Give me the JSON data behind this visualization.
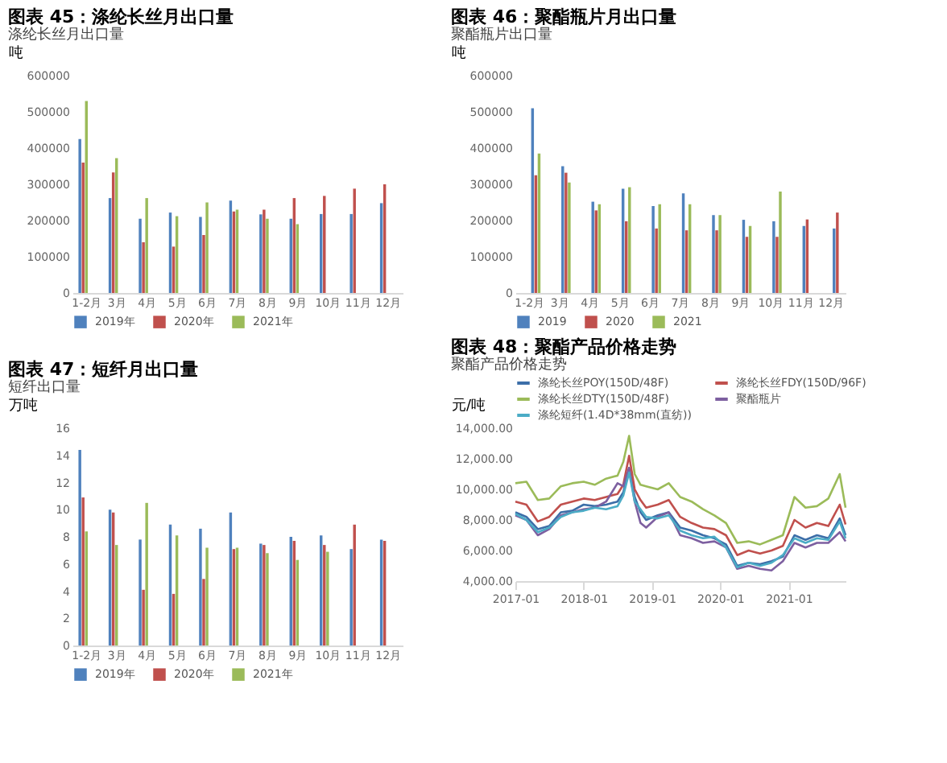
{
  "chart_data": [
    {
      "type": "bar",
      "title": "图表 45：涤纶长丝月出口量",
      "subtitle": "涤纶长丝月出口量",
      "ylabel": "吨",
      "categories": [
        "1-2月",
        "3月",
        "4月",
        "5月",
        "6月",
        "7月",
        "8月",
        "9月",
        "10月",
        "11月",
        "12月"
      ],
      "series": [
        {
          "name": "2019年",
          "color": "#4f81bd",
          "values": [
            425000,
            262000,
            205000,
            222000,
            210000,
            255000,
            217000,
            205000,
            218000,
            218000,
            248000
          ]
        },
        {
          "name": "2020年",
          "color": "#c0504d",
          "values": [
            360000,
            333000,
            140000,
            128000,
            160000,
            225000,
            230000,
            262000,
            268000,
            288000,
            300000
          ]
        },
        {
          "name": "2021年",
          "color": "#9bbb59",
          "values": [
            530000,
            372000,
            262000,
            212000,
            250000,
            230000,
            205000,
            190000,
            null,
            null,
            null
          ]
        }
      ],
      "ylim": [
        0,
        600000
      ],
      "yticks": [
        0,
        100000,
        200000,
        300000,
        400000,
        500000,
        600000
      ],
      "grid": false,
      "legend": "bottom"
    },
    {
      "type": "bar",
      "title": "图表 46：聚酯瓶片月出口量",
      "subtitle": "聚酯瓶片出口量",
      "ylabel": "吨",
      "categories": [
        "1-2月",
        "3月",
        "4月",
        "5月",
        "6月",
        "7月",
        "8月",
        "9月",
        "10月",
        "11月",
        "12月"
      ],
      "series": [
        {
          "name": "2019",
          "color": "#4f81bd",
          "values": [
            510000,
            350000,
            252000,
            288000,
            240000,
            275000,
            215000,
            202000,
            198000,
            185000,
            178000
          ]
        },
        {
          "name": "2020",
          "color": "#c0504d",
          "values": [
            325000,
            332000,
            228000,
            198000,
            178000,
            173000,
            173000,
            155000,
            155000,
            203000,
            222000
          ]
        },
        {
          "name": "2021",
          "color": "#9bbb59",
          "values": [
            385000,
            305000,
            245000,
            292000,
            245000,
            245000,
            215000,
            185000,
            280000,
            null,
            null
          ]
        }
      ],
      "ylim": [
        0,
        600000
      ],
      "yticks": [
        0,
        100000,
        200000,
        300000,
        400000,
        500000,
        600000
      ],
      "grid": false,
      "legend": "bottom"
    },
    {
      "type": "bar",
      "title": "图表 47：短纤月出口量",
      "subtitle": "短纤出口量",
      "ylabel": "万吨",
      "categories": [
        "1-2月",
        "3月",
        "4月",
        "5月",
        "6月",
        "7月",
        "8月",
        "9月",
        "10月",
        "11月",
        "12月"
      ],
      "series": [
        {
          "name": "2019年",
          "color": "#4f81bd",
          "values": [
            14.4,
            10.0,
            7.8,
            8.9,
            8.6,
            9.8,
            7.5,
            8.0,
            8.1,
            7.1,
            7.8
          ]
        },
        {
          "name": "2020年",
          "color": "#c0504d",
          "values": [
            10.9,
            9.8,
            4.1,
            3.8,
            4.9,
            7.1,
            7.4,
            7.7,
            7.4,
            8.9,
            7.7
          ]
        },
        {
          "name": "2021年",
          "color": "#9bbb59",
          "values": [
            8.4,
            7.4,
            10.5,
            8.1,
            7.2,
            7.2,
            6.8,
            6.3,
            6.9,
            null,
            null
          ]
        }
      ],
      "ylim": [
        0,
        16
      ],
      "yticks": [
        0,
        2,
        4,
        6,
        8,
        10,
        12,
        14,
        16
      ],
      "grid": false,
      "legend": "bottom"
    },
    {
      "type": "line",
      "title": "图表 48：聚酯产品价格走势",
      "subtitle": "聚酯产品价格走势",
      "ylabel": "元/吨",
      "x": [
        "2017-01",
        "2017-03",
        "2017-05",
        "2017-07",
        "2017-09",
        "2017-11",
        "2018-01",
        "2018-03",
        "2018-05",
        "2018-07",
        "2018-08",
        "2018-09",
        "2018-10",
        "2018-11",
        "2018-12",
        "2019-02",
        "2019-04",
        "2019-06",
        "2019-08",
        "2019-10",
        "2019-12",
        "2020-02",
        "2020-04",
        "2020-06",
        "2020-08",
        "2020-10",
        "2020-12",
        "2021-02",
        "2021-04",
        "2021-06",
        "2021-08",
        "2021-10",
        "2021-11"
      ],
      "series": [
        {
          "name": "涤纶长丝POY(150D/48F)",
          "color": "#3c6ea8",
          "values": [
            8500,
            8200,
            7400,
            7600,
            8500,
            8600,
            9000,
            8900,
            9000,
            9200,
            9800,
            11400,
            9500,
            8500,
            8000,
            8300,
            8500,
            7500,
            7300,
            7000,
            6800,
            6400,
            5000,
            5200,
            5100,
            5300,
            5600,
            7000,
            6700,
            7000,
            6800,
            8100,
            7000
          ]
        },
        {
          "name": "涤纶长丝FDY(150D/96F)",
          "color": "#c0504d",
          "values": [
            9200,
            9000,
            7900,
            8200,
            9000,
            9200,
            9400,
            9300,
            9500,
            9700,
            10300,
            12200,
            10000,
            9300,
            8800,
            9000,
            9300,
            8200,
            7800,
            7500,
            7400,
            7000,
            5700,
            6000,
            5800,
            6000,
            6300,
            8000,
            7500,
            7800,
            7600,
            9000,
            7700
          ]
        },
        {
          "name": "涤纶长丝DTY(150D/48F)",
          "color": "#9bbb59",
          "values": [
            10400,
            10500,
            9300,
            9400,
            10200,
            10400,
            10500,
            10300,
            10700,
            10900,
            11800,
            13500,
            11000,
            10300,
            10200,
            10000,
            10400,
            9500,
            9200,
            8700,
            8300,
            7800,
            6500,
            6600,
            6400,
            6700,
            7000,
            9500,
            8800,
            8900,
            9400,
            11000,
            8800
          ]
        },
        {
          "name": "聚酯瓶片",
          "color": "#7d5fa0",
          "values": [
            8300,
            8000,
            7000,
            7400,
            8300,
            8500,
            8700,
            8800,
            9200,
            10400,
            10200,
            11400,
            9200,
            7800,
            7500,
            8200,
            8500,
            7000,
            6800,
            6500,
            6600,
            6200,
            4800,
            5000,
            4800,
            4700,
            5300,
            6500,
            6200,
            6500,
            6500,
            7200,
            6600
          ]
        },
        {
          "name": "涤纶短纤(1.4D*38mm(直纺))",
          "color": "#4bacc6",
          "values": [
            8400,
            8000,
            7200,
            7500,
            8200,
            8500,
            8600,
            8800,
            8700,
            8900,
            9600,
            11100,
            9200,
            8700,
            8200,
            8100,
            8300,
            7300,
            7000,
            6800,
            6900,
            6200,
            4900,
            5200,
            5000,
            5200,
            5700,
            6800,
            6500,
            6800,
            6700,
            7900,
            6800
          ]
        }
      ],
      "xlim": [
        "2017-01",
        "2021-11"
      ],
      "xticks": [
        "2017-01",
        "2018-01",
        "2019-01",
        "2020-01",
        "2021-01"
      ],
      "ylim": [
        4000,
        14000
      ],
      "yticks": [
        {
          "value": 4000,
          "label": "4,000.00"
        },
        {
          "value": 6000,
          "label": "6,000.00"
        },
        {
          "value": 8000,
          "label": "8,000.00"
        },
        {
          "value": 10000,
          "label": "10,000.00"
        },
        {
          "value": 12000,
          "label": "12,000.00"
        },
        {
          "value": 14000,
          "label": "14,000.00"
        }
      ],
      "grid": false,
      "legend": "top",
      "line_style": "solid",
      "marker": "none"
    }
  ]
}
